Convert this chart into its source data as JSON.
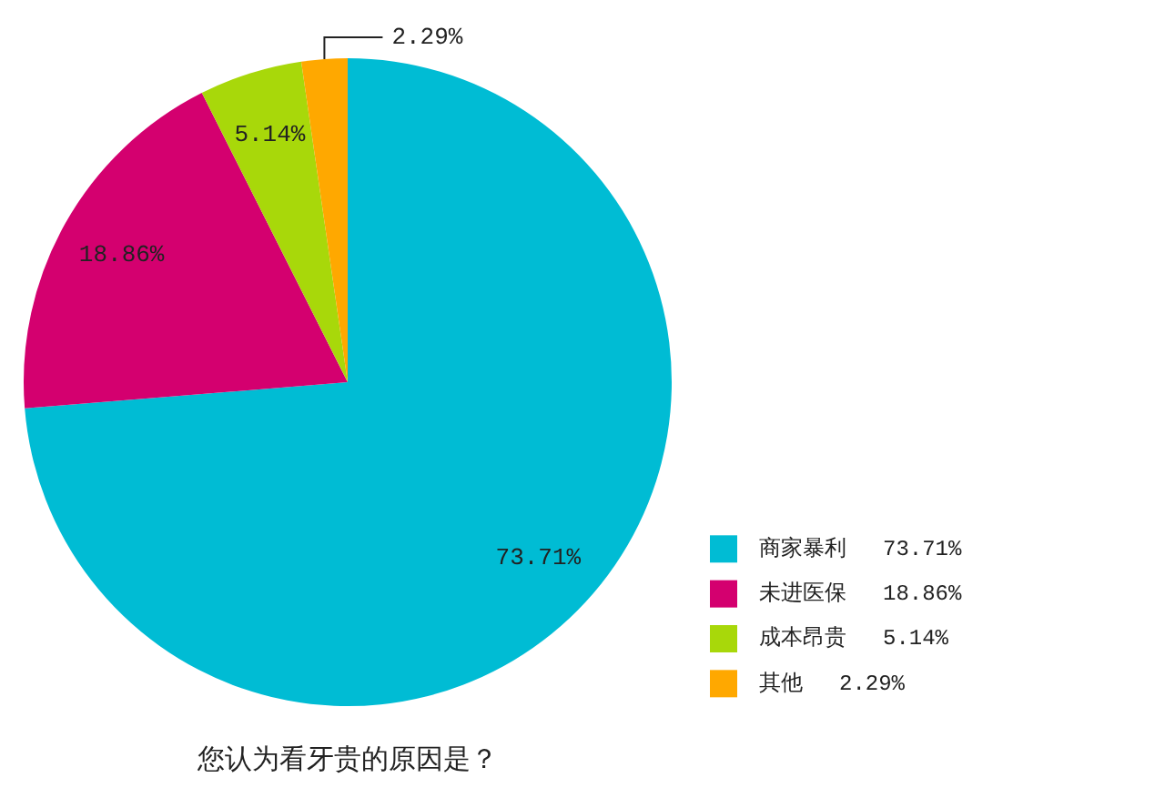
{
  "chart_data": {
    "type": "pie",
    "title": "您认为看牙贵的原因是？",
    "categories": [
      "商家暴利",
      "未进医保",
      "成本昂贵",
      "其他"
    ],
    "values": [
      73.71,
      18.86,
      5.14,
      2.29
    ],
    "colors": [
      "#00bcd4",
      "#d4006f",
      "#a8d80a",
      "#ffa800"
    ],
    "value_labels": [
      "73.71%",
      "18.86%",
      "5.14%",
      "2.29%"
    ],
    "legend": "bottom right"
  }
}
